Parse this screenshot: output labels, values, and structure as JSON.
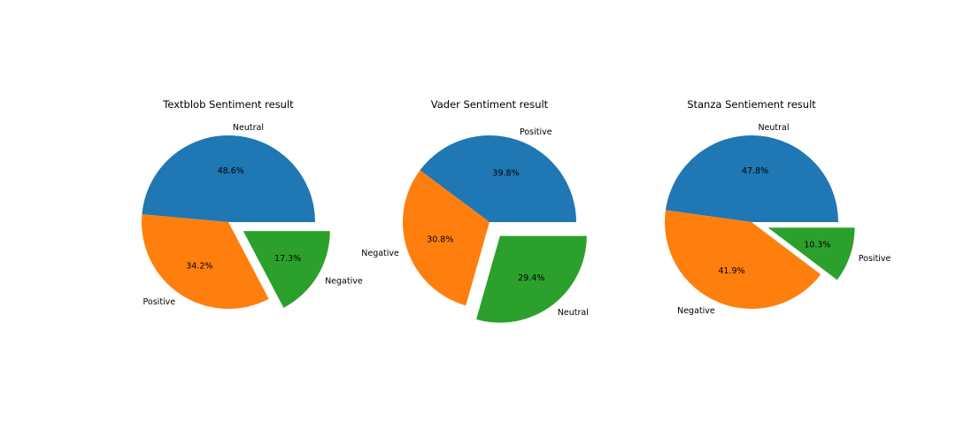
{
  "chart_data": [
    {
      "type": "pie",
      "title": "Textblob Sentiment result",
      "slices": [
        {
          "label": "Neutral",
          "value": 48.6,
          "pct_label": "48.6%",
          "color": "#1f77b4",
          "exploded": false
        },
        {
          "label": "Positive",
          "value": 34.2,
          "pct_label": "34.2%",
          "color": "#ff7f0e",
          "exploded": false
        },
        {
          "label": "Negative",
          "value": 17.3,
          "pct_label": "17.3%",
          "color": "#2ca02c",
          "exploded": true
        }
      ]
    },
    {
      "type": "pie",
      "title": "Vader Sentiment result",
      "slices": [
        {
          "label": "Positive",
          "value": 39.8,
          "pct_label": "39.8%",
          "color": "#1f77b4",
          "exploded": false
        },
        {
          "label": "Negative",
          "value": 30.8,
          "pct_label": "30.8%",
          "color": "#ff7f0e",
          "exploded": false
        },
        {
          "label": "Neutral",
          "value": 29.4,
          "pct_label": "29.4%",
          "color": "#2ca02c",
          "exploded": true
        }
      ]
    },
    {
      "type": "pie",
      "title": "Stanza Sentiement result",
      "slices": [
        {
          "label": "Neutral",
          "value": 47.8,
          "pct_label": "47.8%",
          "color": "#1f77b4",
          "exploded": false
        },
        {
          "label": "Negative",
          "value": 41.9,
          "pct_label": "41.9%",
          "color": "#ff7f0e",
          "exploded": false
        },
        {
          "label": "Positive",
          "value": 10.3,
          "pct_label": "10.3%",
          "color": "#2ca02c",
          "exploded": true
        }
      ]
    }
  ]
}
